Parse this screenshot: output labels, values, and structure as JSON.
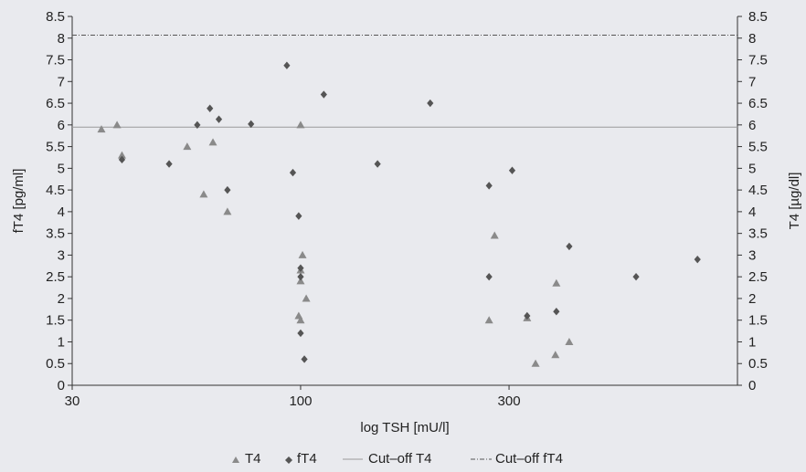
{
  "chart_data": {
    "type": "scatter",
    "xlabel": "log TSH [mU/l]",
    "ylabel_left": "fT4 [pg/ml]",
    "ylabel_right": "T4 [µg/dl]",
    "x_scale": "log",
    "xlim": [
      30,
      1000
    ],
    "x_ticks": [
      30,
      100,
      300
    ],
    "x_tick_labels": [
      "30",
      "100",
      "300"
    ],
    "ylim": [
      0,
      8.5
    ],
    "y_ticks": [
      0,
      0.5,
      1,
      1.5,
      2,
      2.5,
      3,
      3.5,
      4,
      4.5,
      5,
      5.5,
      6,
      6.5,
      7,
      7.5,
      8,
      8.5
    ],
    "y_tick_labels": [
      "0",
      "0.5",
      "1",
      "1.5",
      "2",
      "2.5",
      "3",
      "3.5",
      "4",
      "4.5",
      "5",
      "5.5",
      "6",
      "6.5",
      "7",
      "7.5",
      "8",
      "8.5"
    ],
    "grid": false,
    "legend_position": "bottom",
    "series": [
      {
        "name": "T4",
        "marker": "triangle",
        "color": "#8a8a8a",
        "points": [
          [
            35,
            5.9
          ],
          [
            38,
            6.0
          ],
          [
            39,
            5.3
          ],
          [
            55,
            5.5
          ],
          [
            60,
            4.4
          ],
          [
            63,
            5.6
          ],
          [
            68,
            4.0
          ],
          [
            100,
            6.0
          ],
          [
            101,
            3.0
          ],
          [
            100,
            2.65
          ],
          [
            100,
            2.4
          ],
          [
            103,
            2.0
          ],
          [
            99,
            1.6
          ],
          [
            100,
            1.5
          ],
          [
            270,
            1.5
          ],
          [
            278,
            3.45
          ],
          [
            330,
            1.55
          ],
          [
            345,
            0.5
          ],
          [
            385,
            2.35
          ],
          [
            383,
            0.7
          ],
          [
            412,
            1.0
          ]
        ]
      },
      {
        "name": "fT4",
        "marker": "diamond",
        "color": "#555555",
        "points": [
          [
            39,
            5.2
          ],
          [
            50,
            5.1
          ],
          [
            58,
            6.0
          ],
          [
            62,
            6.38
          ],
          [
            65,
            6.13
          ],
          [
            68,
            4.5
          ],
          [
            77,
            6.02
          ],
          [
            93,
            7.37
          ],
          [
            96,
            4.9
          ],
          [
            99,
            3.9
          ],
          [
            100,
            2.7
          ],
          [
            100,
            2.5
          ],
          [
            100,
            1.2
          ],
          [
            102,
            0.6
          ],
          [
            113,
            6.7
          ],
          [
            150,
            5.1
          ],
          [
            198,
            6.5
          ],
          [
            270,
            4.6
          ],
          [
            270,
            2.5
          ],
          [
            305,
            4.95
          ],
          [
            330,
            1.6
          ],
          [
            385,
            1.7
          ],
          [
            412,
            3.2
          ],
          [
            586,
            2.5
          ],
          [
            810,
            2.9
          ]
        ]
      }
    ],
    "reference_lines": [
      {
        "name": "Cut–off T4",
        "y": 5.95,
        "style": "solid",
        "color": "#9a9a9a"
      },
      {
        "name": "Cut–off fT4",
        "y": 8.07,
        "style": "dash-dot",
        "color": "#555555"
      }
    ]
  }
}
